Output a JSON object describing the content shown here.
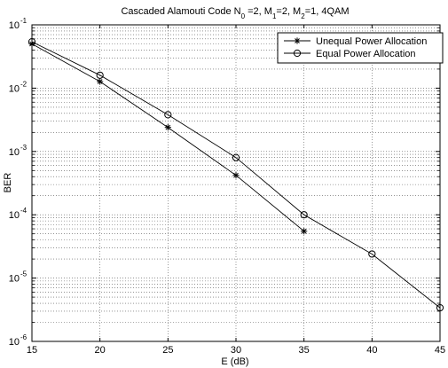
{
  "chart_data": {
    "type": "line",
    "title": {
      "prefix": "Cascaded Alamouti Code N",
      "sub1": "0",
      "mid1": " =2, M",
      "sub2": "1",
      "mid2": "=2, M",
      "sub3": "2",
      "suffix": "=1, 4QAM"
    },
    "xlabel": "E (dB)",
    "ylabel": "BER",
    "xlim": [
      15,
      45
    ],
    "ylim": [
      1e-06,
      0.1
    ],
    "yscale": "log",
    "x_ticks": [
      "15",
      "20",
      "25",
      "30",
      "35",
      "40",
      "45"
    ],
    "y_ticks": [
      {
        "base": "10",
        "exp": "-1"
      },
      {
        "base": "10",
        "exp": "-2"
      },
      {
        "base": "10",
        "exp": "-3"
      },
      {
        "base": "10",
        "exp": "-4"
      },
      {
        "base": "10",
        "exp": "-5"
      },
      {
        "base": "10",
        "exp": "-6"
      }
    ],
    "grid": true,
    "legend_position": "top-right",
    "series": [
      {
        "name": "Unequal Power Allocation",
        "marker": "asterisk",
        "x": [
          15,
          20,
          25,
          30,
          35
        ],
        "y": [
          0.05,
          0.0127,
          0.0024,
          0.00042,
          5.5e-05
        ]
      },
      {
        "name": "Equal Power Allocation",
        "marker": "circle",
        "x": [
          15,
          20,
          25,
          30,
          35,
          40,
          45
        ],
        "y": [
          0.054,
          0.016,
          0.0038,
          0.0008,
          0.0001,
          2.4e-05,
          3.4e-06
        ]
      }
    ]
  }
}
